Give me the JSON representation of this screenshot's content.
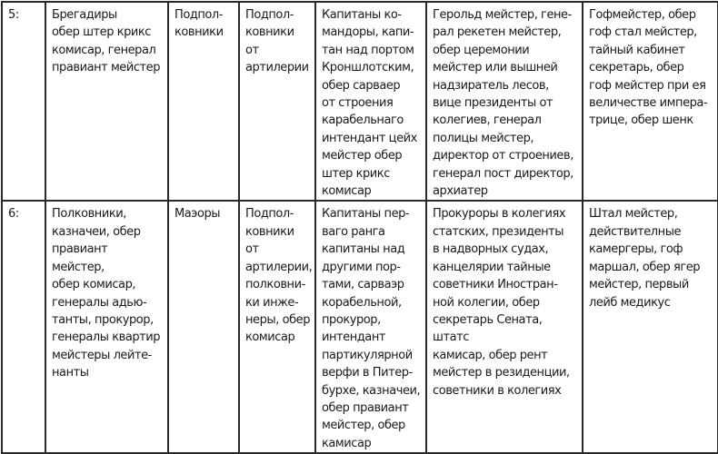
{
  "table": {
    "rows": [
      {
        "rank": "5:",
        "cells": [
          "Брегадиры\nобер штер крикс\nкомисар, генерал\nправиант мейстер",
          "Подпол-\nковники",
          "Подпол-\nковники от\nартилерии",
          "Капитаны ко-\nмандоры, капи-\nтан над портом\nКроншлотским,\nобер сарваер\nот строения\nкарабельнаго\nинтендант цейх\nмейстер обер\nштер крикс\nкомисар",
          "Герольд мейстер, гене-\nрал рекетен мейстер,\nобер церемонии\nмейстер или вышней\nнадзиратель лесов,\nвице президенты от\nколегиев, генерал\nполицы мейстер,\nдиректор от строениев,\nгенерал пост директор,\nархиатер",
          "Гофмейстер, обер\nгоф стал мейстер,\nтайный кабинет\nсекретарь, обер\nгоф мейстер при ея\nвеличестве импера-\nтрице, обер шенк"
        ]
      },
      {
        "rank": "6:",
        "cells": [
          "Полковники,\nказначеи, обер\nправиант мейстер,\nобер комисар,\nгенералы адью-\nтанты, прокурор,\nгенералы квартир\nмейстеры лейте-\nнанты",
          "Маэоры",
          "Подпол-\nковники от\nартилерии,\nполковни-\nки инже-\nнеры, обер\nкомисар",
          "Капитаны пер-\nваго ранга\nкапитаны над\nдругими пор-\nтами, сарваэр\nкорабельной,\nпрокурор,\nинтендант\nпартикулярной\nверфи в Питер-\nбурхе, казначеи,\nобер правиант\nмейстер, обер\nкамисар",
          "Прокуроры в колегиях\nстатских, президенты\nв надворных судах,\nканцелярии тайные\nсоветники Иностран-\nной колегии, обер\nсекретарь Сената, штатс\nкамисар, обер рент\nмейстер в резиденции,\nсоветники в колегиях",
          "Штал мейстер,\nдействителные\nкамергеры, гоф\nмаршал, обер ягер\nмейстер, первый\nлейб медикус"
        ]
      }
    ]
  }
}
